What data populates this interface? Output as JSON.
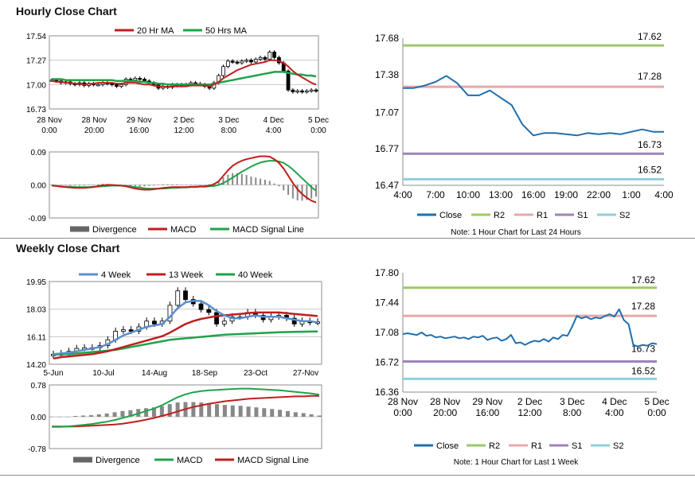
{
  "sections": {
    "hourly_title": "Hourly Close Chart",
    "weekly_title": "Weekly Close Chart"
  },
  "colors": {
    "close": "#1f6fae",
    "r2": "#9bc96b",
    "r1": "#e9a8a8",
    "s1": "#9e83b9",
    "s2": "#8fd0dc",
    "ma_fast": "#bf1e1e",
    "ma_slow": "#1ea34a",
    "ma_mid": "#5a8fcf",
    "divergence": "#888888",
    "candle": "#000000"
  },
  "chart_data": [
    {
      "id": "hourly_price",
      "type": "candlestick",
      "legend": [
        "20 Hr MA",
        "50 Hrs MA"
      ],
      "y_ticks": [
        "17.54",
        "17.27",
        "17.00",
        "16.73"
      ],
      "ylim": [
        16.73,
        17.54
      ],
      "x_ticks": [
        [
          "28 Nov",
          "0:00"
        ],
        [
          "28 Nov",
          "20:00"
        ],
        [
          "29 Nov",
          "16:00"
        ],
        [
          "2 Dec",
          "12:00"
        ],
        [
          "3 Dec",
          "8:00"
        ],
        [
          "4 Dec",
          "4:00"
        ],
        [
          "5 Dec",
          "0:00"
        ]
      ],
      "series": [
        {
          "name": "Close",
          "values": [
            17.05,
            17.04,
            17.02,
            17.03,
            17.01,
            17.0,
            17.02,
            16.99,
            17.01,
            17.0,
            17.0,
            17.02,
            17.01,
            17.0,
            16.98,
            17.0,
            17.06,
            17.05,
            17.07,
            17.06,
            17.04,
            17.02,
            17.0,
            16.96,
            16.98,
            16.97,
            17.0,
            16.99,
            17.0,
            17.0,
            17.02,
            17.01,
            17.0,
            16.98,
            16.96,
            17.02,
            17.1,
            17.2,
            17.26,
            17.25,
            17.24,
            17.26,
            17.27,
            17.25,
            17.28,
            17.3,
            17.28,
            17.36,
            17.3,
            17.24,
            17.15,
            16.94,
            16.92,
            16.93,
            16.92,
            16.93,
            16.94,
            16.93
          ]
        },
        {
          "name": "20 Hr MA",
          "values": [
            17.04,
            17.03,
            17.03,
            17.02,
            17.02,
            17.01,
            17.01,
            17.0,
            17.01,
            17.01,
            17.02,
            17.02,
            17.02,
            17.02,
            17.01,
            17.01,
            17.02,
            17.02,
            17.02,
            17.01,
            17.0,
            17.0,
            16.99,
            16.98,
            16.98,
            16.97,
            16.98,
            16.98,
            16.98,
            16.98,
            16.99,
            16.99,
            16.99,
            16.99,
            16.98,
            17.0,
            17.03,
            17.07,
            17.1,
            17.13,
            17.16,
            17.18,
            17.2,
            17.22,
            17.23,
            17.24,
            17.25,
            17.27,
            17.27,
            17.26,
            17.24,
            17.2,
            17.15,
            17.11,
            17.08,
            17.05,
            17.02,
            17.0
          ]
        },
        {
          "name": "50 Hrs MA",
          "values": [
            17.06,
            17.06,
            17.06,
            17.05,
            17.05,
            17.05,
            17.05,
            17.05,
            17.05,
            17.05,
            17.05,
            17.05,
            17.05,
            17.05,
            17.04,
            17.04,
            17.04,
            17.04,
            17.04,
            17.03,
            17.03,
            17.02,
            17.02,
            17.01,
            17.01,
            17.0,
            17.0,
            17.0,
            17.0,
            17.0,
            17.0,
            17.0,
            17.0,
            17.0,
            17.0,
            17.01,
            17.02,
            17.03,
            17.04,
            17.05,
            17.06,
            17.07,
            17.08,
            17.09,
            17.1,
            17.11,
            17.12,
            17.13,
            17.14,
            17.14,
            17.14,
            17.13,
            17.12,
            17.11,
            17.11,
            17.1,
            17.1,
            17.09
          ]
        }
      ]
    },
    {
      "id": "hourly_macd",
      "type": "macd",
      "legend": [
        "Divergence",
        "MACD",
        "MACD Signal Line"
      ],
      "y_ticks": [
        "0.09",
        "0.00",
        "-0.09"
      ],
      "ylim": [
        -0.09,
        0.09
      ],
      "series": [
        {
          "name": "MACD",
          "values": [
            -0.001,
            -0.003,
            -0.005,
            -0.006,
            -0.007,
            -0.008,
            -0.008,
            -0.008,
            -0.007,
            -0.006,
            -0.003,
            -0.001,
            0.0,
            0.0,
            -0.001,
            -0.002,
            -0.004,
            -0.007,
            -0.01,
            -0.012,
            -0.013,
            -0.013,
            -0.012,
            -0.01,
            -0.008,
            -0.007,
            -0.006,
            -0.006,
            -0.006,
            -0.006,
            -0.005,
            -0.005,
            -0.004,
            -0.004,
            -0.002,
            0.002,
            0.01,
            0.025,
            0.04,
            0.052,
            0.06,
            0.066,
            0.07,
            0.073,
            0.076,
            0.078,
            0.078,
            0.077,
            0.07,
            0.06,
            0.045,
            0.025,
            0.005,
            -0.012,
            -0.025,
            -0.035,
            -0.043,
            -0.048
          ]
        },
        {
          "name": "MACD Signal Line",
          "values": [
            -0.002,
            -0.003,
            -0.004,
            -0.005,
            -0.005,
            -0.006,
            -0.006,
            -0.006,
            -0.006,
            -0.005,
            -0.005,
            -0.004,
            -0.003,
            -0.002,
            -0.002,
            -0.002,
            -0.003,
            -0.004,
            -0.006,
            -0.007,
            -0.009,
            -0.01,
            -0.01,
            -0.01,
            -0.01,
            -0.009,
            -0.008,
            -0.008,
            -0.007,
            -0.007,
            -0.006,
            -0.006,
            -0.005,
            -0.005,
            -0.004,
            -0.003,
            0.0,
            0.005,
            0.012,
            0.02,
            0.028,
            0.036,
            0.043,
            0.05,
            0.056,
            0.061,
            0.064,
            0.066,
            0.066,
            0.064,
            0.06,
            0.052,
            0.042,
            0.03,
            0.018,
            0.006,
            -0.006,
            -0.016
          ]
        },
        {
          "name": "Divergence",
          "values": [
            0.001,
            0.0,
            -0.001,
            -0.001,
            -0.002,
            -0.002,
            -0.002,
            -0.002,
            -0.001,
            -0.001,
            0.002,
            0.003,
            0.003,
            0.002,
            0.001,
            0.0,
            -0.001,
            -0.003,
            -0.004,
            -0.005,
            -0.004,
            -0.003,
            -0.002,
            0.0,
            0.002,
            0.002,
            0.002,
            0.002,
            0.001,
            0.001,
            0.001,
            0.001,
            0.001,
            0.001,
            0.002,
            0.005,
            0.01,
            0.02,
            0.028,
            0.032,
            0.032,
            0.03,
            0.027,
            0.023,
            0.02,
            0.017,
            0.014,
            0.011,
            0.004,
            -0.004,
            -0.015,
            -0.027,
            -0.037,
            -0.042,
            -0.043,
            -0.041,
            -0.037,
            -0.032
          ]
        }
      ]
    },
    {
      "id": "hourly_pivot",
      "type": "line",
      "y_ticks": [
        "17.68",
        "17.38",
        "17.07",
        "16.77",
        "16.47"
      ],
      "ylim": [
        16.47,
        17.68
      ],
      "x_ticks": [
        "4:00",
        "7:00",
        "10:00",
        "13:00",
        "16:00",
        "19:00",
        "22:00",
        "1:00",
        "4:00"
      ],
      "series": [
        {
          "name": "Close",
          "values": [
            17.27,
            17.27,
            17.29,
            17.32,
            17.37,
            17.31,
            17.21,
            17.21,
            17.25,
            17.19,
            17.13,
            16.97,
            16.88,
            16.9,
            16.9,
            16.89,
            16.88,
            16.9,
            16.89,
            16.9,
            16.89,
            16.91,
            16.93,
            16.91,
            16.91
          ]
        }
      ],
      "levels": [
        {
          "name": "R2",
          "value": 17.62,
          "label": "17.62"
        },
        {
          "name": "R1",
          "value": 17.28,
          "label": "17.28"
        },
        {
          "name": "S1",
          "value": 16.73,
          "label": "16.73"
        },
        {
          "name": "S2",
          "value": 16.52,
          "label": "16.52"
        }
      ],
      "legend": [
        "Close",
        "R2",
        "R1",
        "S1",
        "S2"
      ],
      "note": "Note: 1 Hour Chart for Last 24 Hours"
    },
    {
      "id": "weekly_price",
      "type": "candlestick",
      "legend": [
        "4 Week",
        "13 Week",
        "40 Week"
      ],
      "y_ticks": [
        "19.95",
        "18.03",
        "16.11",
        "14.20"
      ],
      "ylim": [
        14.2,
        19.95
      ],
      "x_ticks": [
        "5-Jun",
        "10-Jul",
        "14-Aug",
        "18-Sep",
        "23-Oct",
        "27-Nov"
      ],
      "series": [
        {
          "name": "Close",
          "values": [
            14.9,
            14.95,
            15.1,
            15.3,
            15.35,
            15.35,
            15.5,
            15.9,
            16.5,
            16.6,
            16.5,
            16.8,
            17.2,
            17.0,
            17.2,
            18.3,
            19.3,
            18.7,
            18.4,
            18.0,
            17.8,
            17.0,
            17.2,
            17.5,
            17.5,
            17.8,
            17.6,
            17.3,
            17.5,
            17.6,
            17.4,
            17.0,
            17.2,
            17.1,
            17.15
          ]
        },
        {
          "name": "4 Week",
          "values": [
            14.9,
            14.95,
            15.0,
            15.1,
            15.2,
            15.3,
            15.4,
            15.6,
            15.9,
            16.2,
            16.4,
            16.6,
            16.8,
            16.9,
            17.0,
            17.5,
            18.1,
            18.5,
            18.6,
            18.6,
            18.3,
            17.9,
            17.6,
            17.4,
            17.4,
            17.5,
            17.6,
            17.5,
            17.5,
            17.5,
            17.4,
            17.3,
            17.2,
            17.2,
            17.1
          ]
        },
        {
          "name": "13 Week",
          "values": [
            14.6,
            14.7,
            14.75,
            14.8,
            14.85,
            14.9,
            15.0,
            15.1,
            15.25,
            15.4,
            15.55,
            15.7,
            15.85,
            16.0,
            16.15,
            16.4,
            16.7,
            17.0,
            17.2,
            17.35,
            17.45,
            17.55,
            17.6,
            17.65,
            17.7,
            17.75,
            17.8,
            17.8,
            17.8,
            17.8,
            17.75,
            17.7,
            17.65,
            17.6,
            17.55
          ]
        },
        {
          "name": "40 Week",
          "values": [
            14.85,
            14.9,
            14.9,
            14.95,
            15.0,
            15.05,
            15.1,
            15.15,
            15.2,
            15.3,
            15.4,
            15.5,
            15.6,
            15.7,
            15.8,
            15.9,
            15.95,
            16.0,
            16.05,
            16.1,
            16.15,
            16.2,
            16.25,
            16.28,
            16.3,
            16.33,
            16.35,
            16.38,
            16.4,
            16.42,
            16.44,
            16.45,
            16.46,
            16.47,
            16.48
          ]
        }
      ]
    },
    {
      "id": "weekly_macd",
      "type": "macd",
      "legend": [
        "Divergence",
        "MACD",
        "MACD Signal Line"
      ],
      "y_ticks": [
        "0.78",
        "0.00",
        "-0.78"
      ],
      "ylim": [
        -0.78,
        0.78
      ],
      "series": [
        {
          "name": "MACD",
          "values": [
            -0.25,
            -0.25,
            -0.24,
            -0.22,
            -0.2,
            -0.18,
            -0.15,
            -0.12,
            -0.08,
            -0.03,
            0.02,
            0.08,
            0.14,
            0.2,
            0.28,
            0.38,
            0.48,
            0.55,
            0.6,
            0.63,
            0.65,
            0.66,
            0.67,
            0.68,
            0.69,
            0.69,
            0.68,
            0.67,
            0.66,
            0.65,
            0.63,
            0.61,
            0.59,
            0.57,
            0.54
          ]
        },
        {
          "name": "MACD Signal Line",
          "values": [
            -0.24,
            -0.24,
            -0.24,
            -0.24,
            -0.23,
            -0.22,
            -0.21,
            -0.2,
            -0.19,
            -0.17,
            -0.14,
            -0.11,
            -0.07,
            -0.03,
            0.02,
            0.07,
            0.13,
            0.19,
            0.24,
            0.28,
            0.32,
            0.35,
            0.38,
            0.4,
            0.42,
            0.44,
            0.45,
            0.46,
            0.47,
            0.48,
            0.49,
            0.5,
            0.5,
            0.51,
            0.51
          ]
        },
        {
          "name": "Divergence",
          "values": [
            -0.01,
            -0.01,
            0.0,
            0.02,
            0.03,
            0.04,
            0.06,
            0.08,
            0.11,
            0.14,
            0.16,
            0.19,
            0.21,
            0.23,
            0.26,
            0.31,
            0.35,
            0.36,
            0.36,
            0.35,
            0.33,
            0.31,
            0.29,
            0.28,
            0.27,
            0.25,
            0.23,
            0.21,
            0.19,
            0.17,
            0.14,
            0.11,
            0.09,
            0.06,
            0.03
          ]
        }
      ]
    },
    {
      "id": "weekly_pivot",
      "type": "line",
      "y_ticks": [
        "17.80",
        "17.44",
        "17.08",
        "16.72",
        "16.36"
      ],
      "ylim": [
        16.36,
        17.8
      ],
      "x_ticks": [
        [
          "28 Nov",
          "0:00"
        ],
        [
          "28 Nov",
          "20:00"
        ],
        [
          "29 Nov",
          "16:00"
        ],
        [
          "2 Dec",
          "12:00"
        ],
        [
          "3 Dec",
          "8:00"
        ],
        [
          "4 Dec",
          "4:00"
        ],
        [
          "5 Dec",
          "0:00"
        ]
      ],
      "series": [
        {
          "name": "Close",
          "values": [
            17.06,
            17.07,
            17.06,
            17.05,
            17.08,
            17.04,
            17.05,
            17.02,
            17.03,
            17.01,
            17.02,
            17.03,
            17.01,
            17.02,
            17.0,
            17.03,
            17.02,
            17.04,
            16.99,
            17.01,
            17.02,
            16.98,
            17.0,
            17.05,
            16.95,
            16.96,
            16.93,
            16.96,
            16.98,
            16.97,
            17.0,
            16.97,
            17.02,
            17.0,
            17.05,
            17.04,
            17.15,
            17.28,
            17.25,
            17.27,
            17.24,
            17.26,
            17.25,
            17.28,
            17.3,
            17.27,
            17.36,
            17.23,
            17.18,
            16.93,
            16.91,
            16.93,
            16.92,
            16.95,
            16.94
          ]
        }
      ],
      "levels": [
        {
          "name": "R2",
          "value": 17.62,
          "label": "17.62"
        },
        {
          "name": "R1",
          "value": 17.28,
          "label": "17.28"
        },
        {
          "name": "S1",
          "value": 16.73,
          "label": "16.73"
        },
        {
          "name": "S2",
          "value": 16.52,
          "label": "16.52"
        }
      ],
      "legend": [
        "Close",
        "R2",
        "R1",
        "S1",
        "S2"
      ],
      "note": "Note: 1 Hour Chart for Last 1 Week"
    }
  ]
}
